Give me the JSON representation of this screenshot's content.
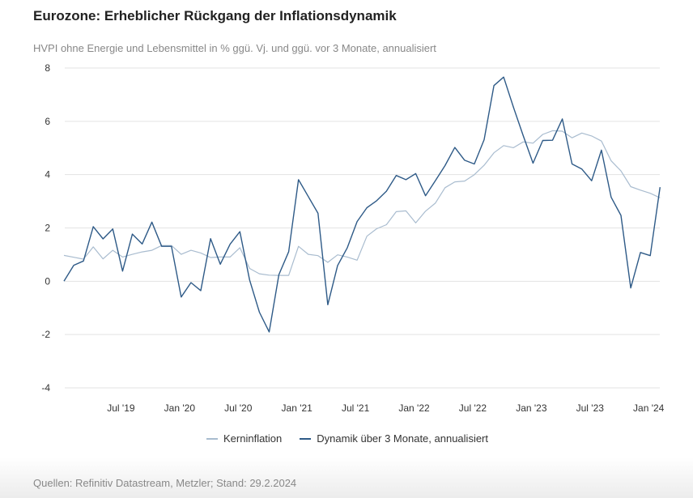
{
  "title": "Eurozone: Erheblicher Rückgang der Inflationsdynamik",
  "subtitle": "HVPI ohne Energie und Lebensmittel in % ggü. Vj. und ggü. vor 3 Monate, annualisiert",
  "source": "Quellen: Refinitiv Datastream, Metzler; Stand: 29.2.2024",
  "chart_data": {
    "type": "line",
    "title": "Eurozone: Erheblicher Rückgang der Inflationsdynamik",
    "xlabel": "",
    "ylabel": "",
    "x_start": "2019-01",
    "x_end": "2024-02",
    "frequency": "monthly",
    "ylim": [
      -4,
      8
    ],
    "yticks": [
      -4,
      -2,
      0,
      2,
      4,
      6,
      8
    ],
    "xticks": [
      {
        "label": "Jul '19",
        "index": 6
      },
      {
        "label": "Jan '20",
        "index": 12
      },
      {
        "label": "Jul '20",
        "index": 18
      },
      {
        "label": "Jan '21",
        "index": 24
      },
      {
        "label": "Jul '21",
        "index": 30
      },
      {
        "label": "Jan '22",
        "index": 36
      },
      {
        "label": "Jul '22",
        "index": 42
      },
      {
        "label": "Jan '23",
        "index": 48
      },
      {
        "label": "Jul '23",
        "index": 54
      },
      {
        "label": "Jan '24",
        "index": 60
      }
    ],
    "grid": true,
    "legend_position": "bottom",
    "series": [
      {
        "name": "Kerninflation",
        "color": "#a9bccf",
        "values": [
          0.97,
          0.9,
          0.83,
          1.29,
          0.84,
          1.16,
          0.91,
          1.01,
          1.1,
          1.16,
          1.34,
          1.34,
          1.01,
          1.16,
          1.06,
          0.89,
          0.91,
          0.91,
          1.26,
          0.48,
          0.28,
          0.23,
          0.22,
          0.22,
          1.31,
          1.01,
          0.96,
          0.71,
          0.99,
          0.91,
          0.79,
          1.69,
          1.97,
          2.12,
          2.61,
          2.64,
          2.19,
          2.63,
          2.93,
          3.51,
          3.73,
          3.76,
          4.0,
          4.35,
          4.82,
          5.09,
          5.01,
          5.23,
          5.18,
          5.51,
          5.65,
          5.63,
          5.38,
          5.56,
          5.45,
          5.26,
          4.52,
          4.14,
          3.55,
          3.42,
          3.3,
          3.13
        ]
      },
      {
        "name": "Dynamik über 3 Monate, annualisiert",
        "color": "#2e5a87",
        "values": [
          0.0,
          0.6,
          0.76,
          2.05,
          1.59,
          1.96,
          0.38,
          1.77,
          1.4,
          2.22,
          1.31,
          1.31,
          -0.59,
          -0.05,
          -0.35,
          1.6,
          0.64,
          1.39,
          1.86,
          0.05,
          -1.16,
          -1.9,
          0.25,
          1.11,
          3.81,
          3.18,
          2.55,
          -0.88,
          0.59,
          1.26,
          2.24,
          2.76,
          3.02,
          3.38,
          3.97,
          3.81,
          4.04,
          3.21,
          3.77,
          4.34,
          5.02,
          4.54,
          4.4,
          5.31,
          7.34,
          7.66,
          6.53,
          5.46,
          4.43,
          5.28,
          5.29,
          6.09,
          4.4,
          4.21,
          3.77,
          4.92,
          3.15,
          2.47,
          -0.25,
          1.08,
          0.96,
          3.53
        ]
      }
    ]
  }
}
